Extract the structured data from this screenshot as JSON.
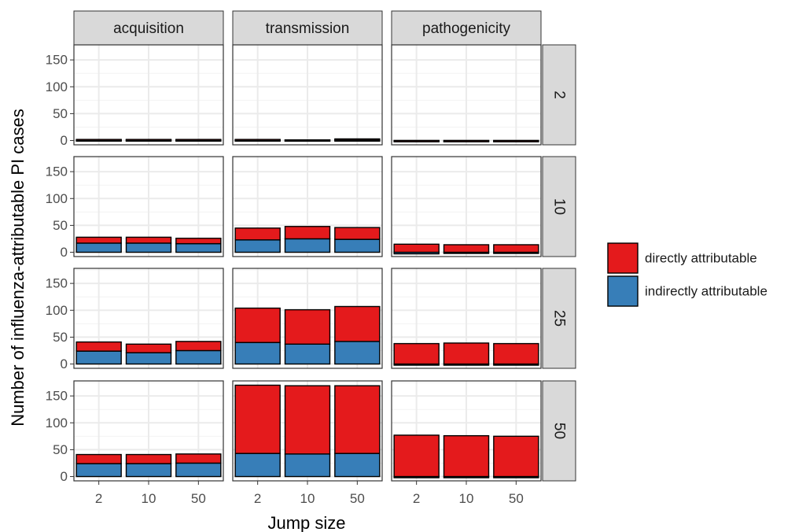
{
  "chart_data": {
    "type": "bar",
    "stacked": true,
    "facet_columns": [
      "acquisition",
      "transmission",
      "pathogenicity"
    ],
    "facet_rows": [
      "2",
      "10",
      "25",
      "50"
    ],
    "categories": [
      "2",
      "10",
      "50"
    ],
    "xlabel": "Jump size",
    "ylabel": "Number of influenza-attributable PI cases",
    "ylim": [
      -8,
      178
    ],
    "yticks": [
      0,
      50,
      100,
      150
    ],
    "grid": true,
    "legend_position": "right",
    "legend": [
      {
        "key": "direct",
        "label": "directly attributable",
        "color": "#e41a1c"
      },
      {
        "key": "indirect",
        "label": "indirectly attributable",
        "color": "#377eb8"
      }
    ],
    "panels": [
      {
        "col": "acquisition",
        "row": "2",
        "indirect": [
          1,
          1,
          1
        ],
        "direct": [
          1,
          1,
          1
        ]
      },
      {
        "col": "transmission",
        "row": "2",
        "indirect": [
          1,
          1,
          1
        ],
        "direct": [
          1,
          0,
          2
        ]
      },
      {
        "col": "pathogenicity",
        "row": "2",
        "indirect": [
          -1,
          -1,
          0
        ],
        "direct": [
          0,
          0,
          0
        ]
      },
      {
        "col": "acquisition",
        "row": "10",
        "indirect": [
          17,
          17,
          16
        ],
        "direct": [
          11,
          11,
          10
        ]
      },
      {
        "col": "transmission",
        "row": "10",
        "indirect": [
          23,
          25,
          24
        ],
        "direct": [
          22,
          23,
          22
        ]
      },
      {
        "col": "pathogenicity",
        "row": "10",
        "indirect": [
          -3,
          -1,
          -1
        ],
        "direct": [
          15,
          14,
          14
        ]
      },
      {
        "col": "acquisition",
        "row": "25",
        "indirect": [
          24,
          21,
          25
        ],
        "direct": [
          17,
          16,
          17
        ]
      },
      {
        "col": "transmission",
        "row": "25",
        "indirect": [
          40,
          37,
          42
        ],
        "direct": [
          64,
          64,
          65
        ]
      },
      {
        "col": "pathogenicity",
        "row": "25",
        "indirect": [
          -1,
          -2,
          -1
        ],
        "direct": [
          38,
          39,
          38
        ]
      },
      {
        "col": "acquisition",
        "row": "50",
        "indirect": [
          24,
          24,
          25
        ],
        "direct": [
          17,
          17,
          17
        ]
      },
      {
        "col": "transmission",
        "row": "50",
        "indirect": [
          43,
          42,
          43
        ],
        "direct": [
          127,
          127,
          126
        ]
      },
      {
        "col": "pathogenicity",
        "row": "50",
        "indirect": [
          -2,
          -2,
          -1
        ],
        "direct": [
          77,
          76,
          75
        ]
      }
    ]
  }
}
